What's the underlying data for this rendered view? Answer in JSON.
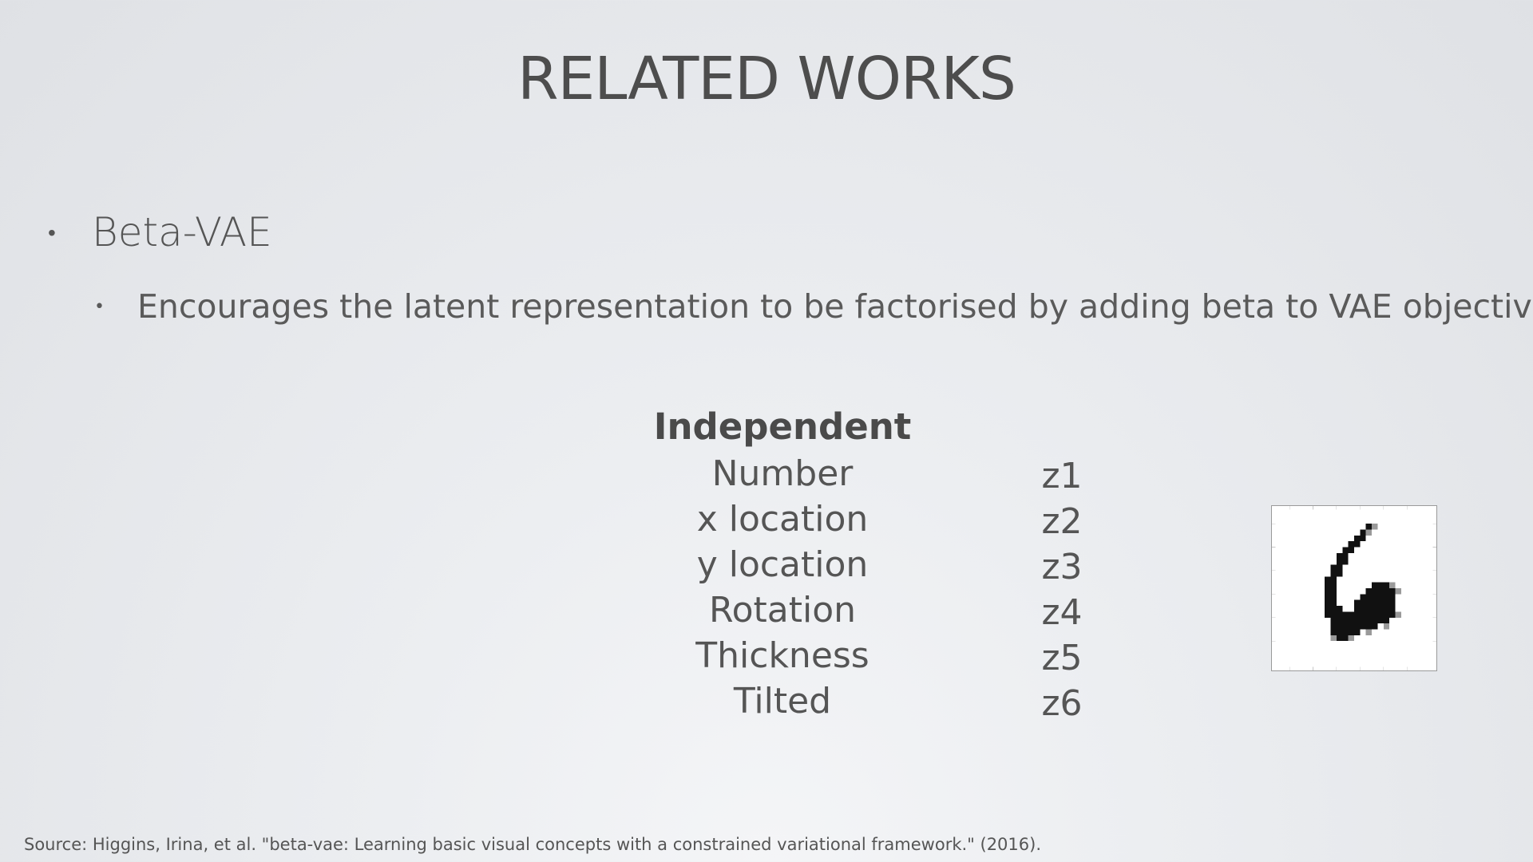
{
  "slide": {
    "title": "RELATED WORKS",
    "bullet": "Beta-VAE",
    "sub_bullet": "Encourages the latent representation to be factorised by adding beta to VAE objective",
    "bullet_marker": "•"
  },
  "factors": {
    "heading": "Independent",
    "items": [
      "Number",
      "x location",
      "y location",
      "Rotation",
      "Thickness",
      "Tilted"
    ]
  },
  "latents": {
    "items": [
      "z1",
      "z2",
      "z3",
      "z4",
      "z5",
      "z6"
    ]
  },
  "source": "Source: Higgins, Irina, et al. \"beta-vae: Learning basic visual concepts with a constrained variational framework.\" (2016)."
}
